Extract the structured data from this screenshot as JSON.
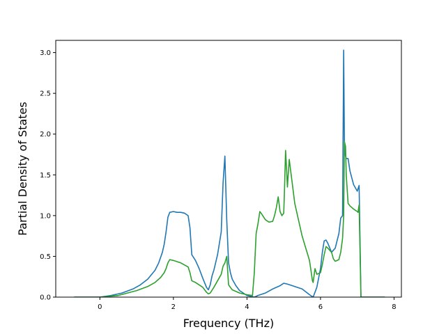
{
  "chart_data": {
    "type": "line",
    "title": "",
    "xlabel": "Frequency (THz)",
    "ylabel": "Partial Density of States",
    "xlim": [
      -1.2,
      8.2
    ],
    "ylim": [
      0,
      3.15
    ],
    "xticks": [
      0,
      2,
      4,
      6,
      8
    ],
    "yticks": [
      0.0,
      0.5,
      1.0,
      1.5,
      2.0,
      2.5,
      3.0
    ],
    "xtick_labels": [
      "0",
      "2",
      "4",
      "6",
      "8"
    ],
    "ytick_labels": [
      "0.0",
      "0.5",
      "1.0",
      "1.5",
      "2.0",
      "2.5",
      "3.0"
    ],
    "grid": false,
    "series": [
      {
        "color": "#1f77b4",
        "x": [
          -0.7,
          0.0,
          0.3,
          0.6,
          0.9,
          1.1,
          1.3,
          1.5,
          1.6,
          1.7,
          1.75,
          1.8,
          1.85,
          1.9,
          2.0,
          2.1,
          2.2,
          2.3,
          2.4,
          2.45,
          2.5,
          2.6,
          2.7,
          2.8,
          2.9,
          2.95,
          3.0,
          3.05,
          3.1,
          3.2,
          3.3,
          3.35,
          3.4,
          3.45,
          3.5,
          3.55,
          3.6,
          3.7,
          3.8,
          4.0,
          4.2,
          4.3,
          4.5,
          4.7,
          4.9,
          5.0,
          5.1,
          5.3,
          5.5,
          5.7,
          5.8,
          5.9,
          6.0,
          6.05,
          6.1,
          6.15,
          6.2,
          6.3,
          6.4,
          6.5,
          6.55,
          6.6,
          6.63,
          6.65,
          6.67,
          6.7,
          6.75,
          6.8,
          6.9,
          7.0,
          7.05,
          7.1,
          7.3,
          7.5,
          7.75
        ],
        "y": [
          0.0,
          0.0,
          0.02,
          0.05,
          0.1,
          0.15,
          0.22,
          0.33,
          0.42,
          0.55,
          0.65,
          0.8,
          0.98,
          1.04,
          1.05,
          1.04,
          1.04,
          1.03,
          1.0,
          0.85,
          0.52,
          0.45,
          0.35,
          0.23,
          0.12,
          0.09,
          0.15,
          0.26,
          0.33,
          0.52,
          0.8,
          1.4,
          1.73,
          0.95,
          0.42,
          0.3,
          0.22,
          0.14,
          0.08,
          0.02,
          0.0,
          0.02,
          0.05,
          0.1,
          0.14,
          0.17,
          0.16,
          0.13,
          0.1,
          0.03,
          0.0,
          0.12,
          0.35,
          0.55,
          0.69,
          0.7,
          0.66,
          0.55,
          0.6,
          0.78,
          0.97,
          1.0,
          3.03,
          1.9,
          1.75,
          1.7,
          1.7,
          1.55,
          1.38,
          1.3,
          1.37,
          0.0,
          0.0,
          0.0,
          0.0
        ]
      },
      {
        "color": "#2ca02c",
        "x": [
          -0.7,
          0.0,
          0.5,
          1.0,
          1.3,
          1.5,
          1.65,
          1.75,
          1.8,
          1.85,
          1.9,
          2.0,
          2.2,
          2.4,
          2.45,
          2.5,
          2.6,
          2.7,
          2.8,
          2.9,
          2.95,
          3.0,
          3.1,
          3.2,
          3.3,
          3.35,
          3.4,
          3.45,
          3.5,
          3.6,
          3.8,
          4.0,
          4.15,
          4.2,
          4.25,
          4.3,
          4.35,
          4.4,
          4.5,
          4.6,
          4.7,
          4.75,
          4.8,
          4.85,
          4.9,
          4.95,
          5.0,
          5.02,
          5.05,
          5.08,
          5.1,
          5.15,
          5.3,
          5.5,
          5.6,
          5.7,
          5.75,
          5.78,
          5.8,
          5.85,
          5.9,
          6.0,
          6.05,
          6.1,
          6.15,
          6.2,
          6.3,
          6.35,
          6.4,
          6.5,
          6.55,
          6.6,
          6.63,
          6.65,
          6.68,
          6.7,
          6.75,
          6.8,
          6.9,
          7.0,
          7.02,
          7.05,
          7.1,
          7.3,
          7.5,
          7.75
        ],
        "y": [
          0.0,
          0.0,
          0.02,
          0.08,
          0.13,
          0.18,
          0.24,
          0.3,
          0.35,
          0.42,
          0.46,
          0.45,
          0.42,
          0.37,
          0.3,
          0.2,
          0.18,
          0.15,
          0.12,
          0.06,
          0.04,
          0.05,
          0.12,
          0.2,
          0.28,
          0.38,
          0.42,
          0.5,
          0.15,
          0.09,
          0.05,
          0.03,
          0.02,
          0.3,
          0.78,
          0.9,
          1.05,
          1.02,
          0.95,
          0.92,
          0.93,
          1.0,
          1.1,
          1.23,
          1.05,
          1.0,
          1.03,
          1.3,
          1.8,
          1.55,
          1.35,
          1.69,
          1.15,
          0.75,
          0.6,
          0.45,
          0.3,
          0.2,
          0.18,
          0.35,
          0.28,
          0.3,
          0.4,
          0.52,
          0.62,
          0.6,
          0.55,
          0.47,
          0.44,
          0.46,
          0.55,
          0.72,
          1.0,
          1.91,
          1.85,
          1.5,
          1.15,
          1.12,
          1.08,
          1.05,
          1.04,
          1.13,
          0.0,
          0.0,
          0.0,
          0.0
        ]
      }
    ]
  }
}
